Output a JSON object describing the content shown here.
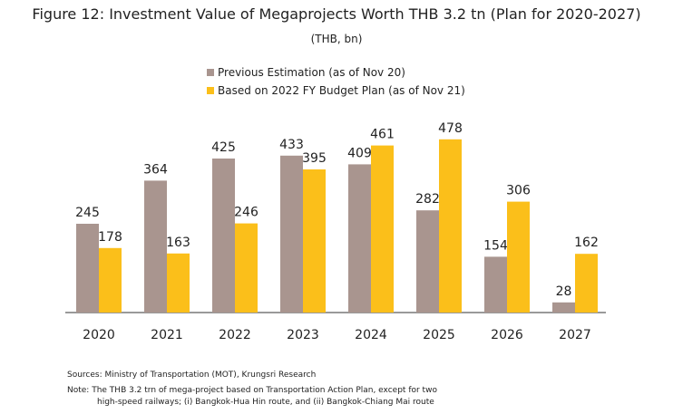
{
  "title": "Figure 12: Investment Value of Megaprojects Worth THB 3.2 tn (Plan for 2020-2027)",
  "subtitle": "(THB, bn)",
  "colors": {
    "previous": "#a9958f",
    "budget": "#fbbf1a",
    "axis": "#333333"
  },
  "chart_data": {
    "type": "bar",
    "categories": [
      "2020",
      "2021",
      "2022",
      "2023",
      "2024",
      "2025",
      "2026",
      "2027"
    ],
    "series": [
      {
        "name": "Previous Estimation (as of Nov 20)",
        "values": [
          245,
          364,
          425,
          433,
          409,
          282,
          154,
          28
        ]
      },
      {
        "name": "Based on 2022 FY Budget Plan (as of Nov 21)",
        "values": [
          178,
          163,
          246,
          395,
          461,
          478,
          306,
          162
        ]
      }
    ],
    "ylim": [
      0,
      500
    ],
    "legend": "top-center",
    "grid": false
  },
  "notes": {
    "sources": "Sources: Ministry of Transportation (MOT), Krungsri Research",
    "note_line1": "Note: The THB 3.2 trn of mega-project based on Transportation Action Plan, except for two",
    "note_line2": "high-speed railways; (i) Bangkok-Hua Hin route, and (ii) Bangkok-Chiang Mai route"
  }
}
